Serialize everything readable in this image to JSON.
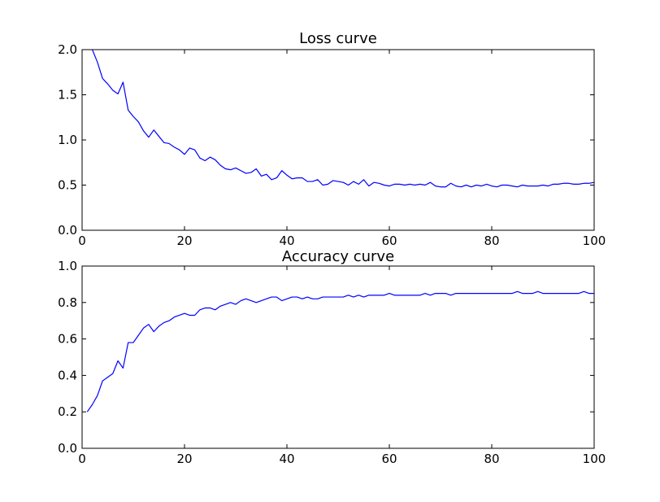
{
  "chart_data": [
    {
      "type": "line",
      "title": "Loss curve",
      "xlabel": "",
      "ylabel": "",
      "xlim": [
        0,
        100
      ],
      "ylim": [
        0.0,
        2.0
      ],
      "xticks": [
        0,
        20,
        40,
        60,
        80,
        100
      ],
      "yticks": [
        0.0,
        0.5,
        1.0,
        1.5,
        2.0
      ],
      "xtick_labels": [
        "0",
        "20",
        "40",
        "60",
        "80",
        "100"
      ],
      "ytick_labels": [
        "0.0",
        "0.5",
        "1.0",
        "1.5",
        "2.0"
      ],
      "grid": false,
      "color": "#0000ff",
      "series": [
        {
          "x": [
            2,
            3,
            4,
            5,
            6,
            7,
            8,
            9,
            10,
            11,
            12,
            13,
            14,
            15,
            16,
            17,
            18,
            19,
            20,
            21,
            22,
            23,
            24,
            25,
            26,
            27,
            28,
            29,
            30,
            31,
            32,
            33,
            34,
            35,
            36,
            37,
            38,
            39,
            40,
            41,
            42,
            43,
            44,
            45,
            46,
            47,
            48,
            49,
            50,
            51,
            52,
            53,
            54,
            55,
            56,
            57,
            58,
            59,
            60,
            61,
            62,
            63,
            64,
            65,
            66,
            67,
            68,
            69,
            70,
            71,
            72,
            73,
            74,
            75,
            76,
            77,
            78,
            79,
            80,
            81,
            82,
            83,
            84,
            85,
            86,
            87,
            88,
            89,
            90,
            91,
            92,
            93,
            94,
            95,
            96,
            97,
            98,
            99,
            100
          ],
          "values": [
            2.0,
            1.86,
            1.68,
            1.62,
            1.55,
            1.51,
            1.64,
            1.33,
            1.26,
            1.2,
            1.1,
            1.03,
            1.11,
            1.04,
            0.97,
            0.96,
            0.92,
            0.89,
            0.84,
            0.91,
            0.89,
            0.8,
            0.77,
            0.81,
            0.78,
            0.72,
            0.68,
            0.67,
            0.69,
            0.66,
            0.63,
            0.64,
            0.68,
            0.6,
            0.62,
            0.56,
            0.58,
            0.66,
            0.61,
            0.57,
            0.58,
            0.58,
            0.54,
            0.54,
            0.56,
            0.5,
            0.51,
            0.55,
            0.54,
            0.53,
            0.5,
            0.54,
            0.51,
            0.56,
            0.49,
            0.53,
            0.52,
            0.5,
            0.49,
            0.51,
            0.51,
            0.5,
            0.51,
            0.5,
            0.51,
            0.5,
            0.53,
            0.49,
            0.48,
            0.48,
            0.52,
            0.49,
            0.48,
            0.5,
            0.48,
            0.5,
            0.49,
            0.51,
            0.49,
            0.48,
            0.5,
            0.5,
            0.49,
            0.48,
            0.5,
            0.49,
            0.49,
            0.49,
            0.5,
            0.49,
            0.51,
            0.51,
            0.52,
            0.52,
            0.51,
            0.51,
            0.52,
            0.52,
            0.53
          ]
        }
      ]
    },
    {
      "type": "line",
      "title": "Accuracy curve",
      "xlabel": "",
      "ylabel": "",
      "xlim": [
        0,
        100
      ],
      "ylim": [
        0.0,
        1.0
      ],
      "xticks": [
        0,
        20,
        40,
        60,
        80,
        100
      ],
      "yticks": [
        0.0,
        0.2,
        0.4,
        0.6,
        0.8,
        1.0
      ],
      "xtick_labels": [
        "0",
        "20",
        "40",
        "60",
        "80",
        "100"
      ],
      "ytick_labels": [
        "0.0",
        "0.2",
        "0.4",
        "0.6",
        "0.8",
        "1.0"
      ],
      "grid": false,
      "color": "#0000ff",
      "series": [
        {
          "x": [
            1,
            2,
            3,
            4,
            5,
            6,
            7,
            8,
            9,
            10,
            11,
            12,
            13,
            14,
            15,
            16,
            17,
            18,
            19,
            20,
            21,
            22,
            23,
            24,
            25,
            26,
            27,
            28,
            29,
            30,
            31,
            32,
            33,
            34,
            35,
            36,
            37,
            38,
            39,
            40,
            41,
            42,
            43,
            44,
            45,
            46,
            47,
            48,
            49,
            50,
            51,
            52,
            53,
            54,
            55,
            56,
            57,
            58,
            59,
            60,
            61,
            62,
            63,
            64,
            65,
            66,
            67,
            68,
            69,
            70,
            71,
            72,
            73,
            74,
            75,
            76,
            77,
            78,
            79,
            80,
            81,
            82,
            83,
            84,
            85,
            86,
            87,
            88,
            89,
            90,
            91,
            92,
            93,
            94,
            95,
            96,
            97,
            98,
            99,
            100
          ],
          "values": [
            0.2,
            0.24,
            0.29,
            0.37,
            0.39,
            0.41,
            0.48,
            0.44,
            0.58,
            0.58,
            0.62,
            0.66,
            0.68,
            0.64,
            0.67,
            0.69,
            0.7,
            0.72,
            0.73,
            0.74,
            0.73,
            0.73,
            0.76,
            0.77,
            0.77,
            0.76,
            0.78,
            0.79,
            0.8,
            0.79,
            0.81,
            0.82,
            0.81,
            0.8,
            0.81,
            0.82,
            0.83,
            0.83,
            0.81,
            0.82,
            0.83,
            0.83,
            0.82,
            0.83,
            0.82,
            0.82,
            0.83,
            0.83,
            0.83,
            0.83,
            0.83,
            0.84,
            0.83,
            0.84,
            0.83,
            0.84,
            0.84,
            0.84,
            0.84,
            0.85,
            0.84,
            0.84,
            0.84,
            0.84,
            0.84,
            0.84,
            0.85,
            0.84,
            0.85,
            0.85,
            0.85,
            0.84,
            0.85,
            0.85,
            0.85,
            0.85,
            0.85,
            0.85,
            0.85,
            0.85,
            0.85,
            0.85,
            0.85,
            0.85,
            0.86,
            0.85,
            0.85,
            0.85,
            0.86,
            0.85,
            0.85,
            0.85,
            0.85,
            0.85,
            0.85,
            0.85,
            0.85,
            0.86,
            0.85,
            0.85
          ]
        }
      ]
    }
  ]
}
